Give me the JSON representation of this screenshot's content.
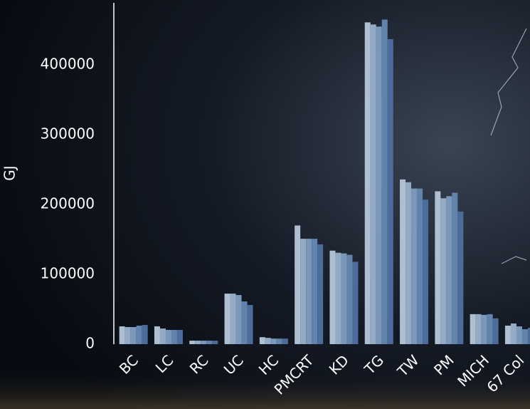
{
  "chart_data": {
    "type": "bar",
    "y_label": "GJ",
    "categories": [
      "BC",
      "LC",
      "RC",
      "UC",
      "HC",
      "PMCRT",
      "KD",
      "TG",
      "TW",
      "PM",
      "MICH",
      "67 Col"
    ],
    "series": [
      {
        "color": "#aebfd2",
        "values": [
          25500,
          25500,
          5000,
          72400,
          10000,
          170000,
          134000,
          461000,
          236000,
          219000,
          43000,
          26500
        ]
      },
      {
        "color": "#94abc6",
        "values": [
          24500,
          22400,
          5000,
          72400,
          9000,
          151000,
          131000,
          458000,
          232000,
          209000,
          43000,
          29600
        ]
      },
      {
        "color": "#7b98ba",
        "values": [
          24500,
          20400,
          5000,
          70400,
          8000,
          151000,
          130000,
          455000,
          223000,
          212000,
          42000,
          25500
        ]
      },
      {
        "color": "#6283ac",
        "values": [
          26500,
          20400,
          5000,
          61200,
          8000,
          151000,
          128000,
          465000,
          223000,
          217000,
          43000,
          21400
        ]
      },
      {
        "color": "#4c6d9b",
        "values": [
          27500,
          20400,
          5000,
          56100,
          8000,
          143000,
          118000,
          437000,
          207000,
          190000,
          37000,
          23500
        ]
      }
    ],
    "ylim": [
      0,
      490000
    ],
    "yticks": [
      0,
      100000,
      200000,
      300000,
      400000
    ],
    "grid": false
  }
}
